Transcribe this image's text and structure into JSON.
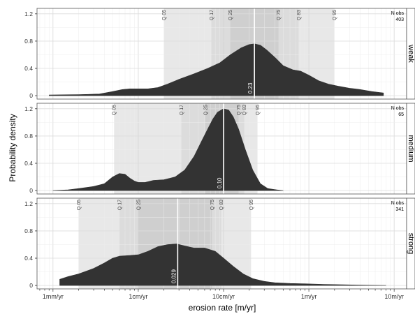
{
  "chart_data": {
    "type": "area",
    "xlabel": "erosion rate [m/yr]",
    "ylabel": "Probability density",
    "x_scale": "log",
    "x_ticks": [
      {
        "value": 0.001,
        "label": "1mm/yr"
      },
      {
        "value": 0.01,
        "label": "1cm/yr"
      },
      {
        "value": 0.1,
        "label": "10cm/yr"
      },
      {
        "value": 1,
        "label": "1m/yr"
      },
      {
        "value": 10,
        "label": "10m/yr"
      }
    ],
    "xlim": [
      0.00065,
      14
    ],
    "y_ticks": [
      0,
      0.4,
      0.8,
      1.2
    ],
    "y_tick_labels": [
      "0",
      "0.4",
      "0.8",
      "1.2"
    ],
    "ylim": [
      -0.05,
      1.28
    ],
    "grid": true,
    "shade_colors": [
      "#e8e8e8",
      "#dcdcdc",
      "#cfcfcf"
    ],
    "fill_color": "#333333",
    "median_line_color": "#ffffff",
    "panels": [
      {
        "label": "weak",
        "n_obs_label": "N obs",
        "n_obs": "403",
        "median": 0.23,
        "median_label": "0.23",
        "quantiles": [
          {
            "label": "Q 05",
            "value": 0.02
          },
          {
            "label": "Q 17",
            "value": 0.072
          },
          {
            "label": "Q 25",
            "value": 0.12
          },
          {
            "label": "Q 75",
            "value": 0.44
          },
          {
            "label": "Q 83",
            "value": 0.76
          },
          {
            "label": "Q 95",
            "value": 1.98
          }
        ],
        "density": {
          "x": [
            0.0009,
            0.002,
            0.0035,
            0.005,
            0.0065,
            0.008,
            0.01,
            0.013,
            0.017,
            0.022,
            0.03,
            0.045,
            0.065,
            0.09,
            0.12,
            0.16,
            0.2,
            0.23,
            0.27,
            0.32,
            0.4,
            0.5,
            0.65,
            0.8,
            1.0,
            1.3,
            1.7,
            2.2,
            3.0,
            4.0,
            5.5,
            7.5
          ],
          "y": [
            0.01,
            0.015,
            0.025,
            0.06,
            0.09,
            0.1,
            0.1,
            0.1,
            0.12,
            0.17,
            0.24,
            0.32,
            0.4,
            0.48,
            0.6,
            0.7,
            0.75,
            0.76,
            0.74,
            0.67,
            0.56,
            0.44,
            0.38,
            0.36,
            0.3,
            0.22,
            0.17,
            0.14,
            0.11,
            0.09,
            0.06,
            0.04
          ]
        }
      },
      {
        "label": "medium",
        "n_obs_label": "N obs",
        "n_obs": "65",
        "median": 0.1,
        "median_label": "0.10",
        "quantiles": [
          {
            "label": "Q 05",
            "value": 0.0052
          },
          {
            "label": "Q 17",
            "value": 0.032
          },
          {
            "label": "Q 25",
            "value": 0.061
          },
          {
            "label": "Q 75",
            "value": 0.15
          },
          {
            "label": "Q 83",
            "value": 0.175
          },
          {
            "label": "Q 95",
            "value": 0.25
          }
        ],
        "density": {
          "x": [
            0.001,
            0.0015,
            0.002,
            0.003,
            0.004,
            0.005,
            0.006,
            0.007,
            0.008,
            0.009,
            0.01,
            0.012,
            0.015,
            0.02,
            0.027,
            0.035,
            0.045,
            0.055,
            0.065,
            0.075,
            0.085,
            0.1,
            0.115,
            0.13,
            0.15,
            0.18,
            0.22,
            0.27,
            0.33,
            0.42,
            0.5
          ],
          "y": [
            0.0,
            0.01,
            0.03,
            0.06,
            0.1,
            0.2,
            0.25,
            0.24,
            0.18,
            0.14,
            0.12,
            0.12,
            0.15,
            0.16,
            0.2,
            0.3,
            0.5,
            0.72,
            0.9,
            1.05,
            1.15,
            1.2,
            1.18,
            1.08,
            0.9,
            0.6,
            0.3,
            0.1,
            0.03,
            0.01,
            0.0
          ]
        }
      },
      {
        "label": "strong",
        "n_obs_label": "N obs",
        "n_obs": "341",
        "median": 0.029,
        "median_label": "0.029",
        "quantiles": [
          {
            "label": "Q 05",
            "value": 0.002
          },
          {
            "label": "Q 17",
            "value": 0.006
          },
          {
            "label": "Q 25",
            "value": 0.01
          },
          {
            "label": "Q 75",
            "value": 0.073
          },
          {
            "label": "Q 83",
            "value": 0.094
          },
          {
            "label": "Q 95",
            "value": 0.21
          }
        ],
        "density": {
          "x": [
            0.0012,
            0.0015,
            0.002,
            0.003,
            0.004,
            0.005,
            0.006,
            0.008,
            0.01,
            0.013,
            0.017,
            0.022,
            0.028,
            0.035,
            0.045,
            0.06,
            0.08,
            0.1,
            0.13,
            0.17,
            0.22,
            0.3,
            0.4,
            0.6,
            0.9,
            1.5,
            2.5,
            4.0,
            6.0,
            8.0
          ],
          "y": [
            0.09,
            0.13,
            0.17,
            0.25,
            0.33,
            0.4,
            0.43,
            0.44,
            0.45,
            0.5,
            0.57,
            0.6,
            0.61,
            0.58,
            0.55,
            0.55,
            0.5,
            0.4,
            0.28,
            0.17,
            0.1,
            0.06,
            0.04,
            0.03,
            0.025,
            0.015,
            0.01,
            0.005,
            0.002,
            0.0
          ]
        }
      }
    ]
  }
}
